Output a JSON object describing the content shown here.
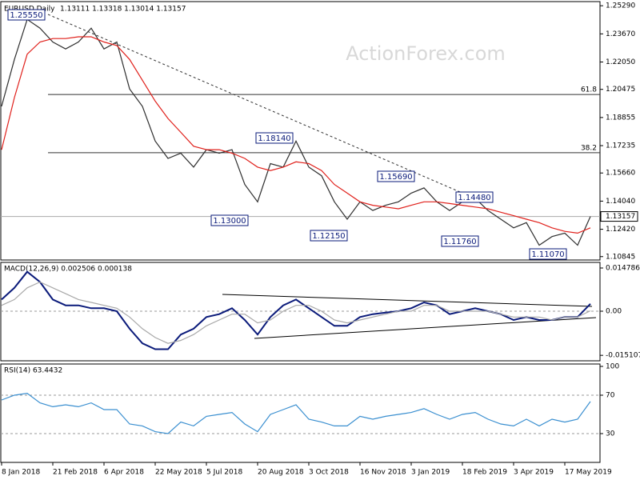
{
  "chart_data": [
    {
      "type": "line",
      "title": "EURUSD,Daily",
      "subtitle": "1.13111 1.13318 1.13014 1.13157",
      "watermark": "ActionForex.com",
      "categories": [
        "8 Jan 2018",
        null,
        null,
        null,
        "21 Feb 2018",
        null,
        null,
        null,
        "6 Apr 2018",
        null,
        null,
        null,
        "22 May 2018",
        null,
        null,
        null,
        "5 Jul 2018",
        null,
        null,
        null,
        "20 Aug 2018",
        null,
        null,
        null,
        "3 Oct 2018",
        null,
        null,
        null,
        "16 Nov 2018",
        null,
        null,
        null,
        "3 Jan 2019",
        null,
        null,
        null,
        "18 Feb 2019",
        null,
        null,
        null,
        "3 Apr 2019",
        null,
        null,
        null,
        "17 May 2019",
        null,
        null
      ],
      "series": [
        {
          "color": "#2f2f2f",
          "values": [
            1.195,
            1.222,
            1.245,
            1.24,
            1.232,
            1.228,
            1.232,
            1.24,
            1.228,
            1.232,
            1.205,
            1.195,
            1.175,
            1.165,
            1.168,
            1.16,
            1.17,
            1.168,
            1.17,
            1.15,
            1.14,
            1.162,
            1.16,
            1.175,
            1.16,
            1.155,
            1.14,
            1.13,
            1.14,
            1.135,
            1.138,
            1.14,
            1.145,
            1.148,
            1.14,
            1.135,
            1.14,
            1.142,
            1.135,
            1.13,
            1.125,
            1.128,
            1.115,
            1.12,
            1.122,
            1.115,
            1.13157
          ]
        },
        {
          "color": "#e0201b",
          "values": [
            1.17,
            1.2,
            1.225,
            1.232,
            1.234,
            1.234,
            1.235,
            1.235,
            1.232,
            1.23,
            1.222,
            1.21,
            1.198,
            1.188,
            1.18,
            1.172,
            1.17,
            1.17,
            1.168,
            1.165,
            1.16,
            1.158,
            1.16,
            1.163,
            1.162,
            1.158,
            1.15,
            1.145,
            1.14,
            1.138,
            1.137,
            1.136,
            1.138,
            1.14,
            1.14,
            1.139,
            1.138,
            1.137,
            1.136,
            1.134,
            1.132,
            1.13,
            1.128,
            1.125,
            1.123,
            1.122,
            1.125
          ]
        }
      ],
      "ylim": [
        1.1065,
        1.2539
      ],
      "yticks": [
        {
          "value": 1.2529,
          "label": "1.25290"
        },
        {
          "value": 1.2367,
          "label": "1.23670"
        },
        {
          "value": 1.2205,
          "label": "1.22050"
        },
        1.20475,
        1.18855,
        1.17235,
        {
          "value": 1.1566,
          "label": "1.15660"
        },
        {
          "value": 1.1404,
          "label": "1.14040"
        },
        {
          "value": 1.1242,
          "label": "1.12420"
        },
        1.10845
      ],
      "last_price": 1.13157,
      "levels": [
        {
          "label": "61.8",
          "value": 1.2018
        },
        {
          "label": "38.2",
          "value": 1.1683
        }
      ],
      "annotations": [
        "1.25550",
        "1.18140",
        "1.13000",
        "1.12150",
        "1.15690",
        "1.14480",
        "1.11760",
        "1.11070"
      ]
    },
    {
      "type": "line",
      "title": "MACD(12,26,9) 0.002506 0.000138",
      "series": [
        {
          "color": "#0a1a7a",
          "values": [
            0.004,
            0.008,
            0.0135,
            0.01,
            0.004,
            0.002,
            0.002,
            0.001,
            0.001,
            0,
            -0.006,
            -0.011,
            -0.013,
            -0.013,
            -0.008,
            -0.006,
            -0.002,
            -0.001,
            0.001,
            -0.003,
            -0.008,
            -0.002,
            0.002,
            0.004,
            0.001,
            -0.002,
            -0.005,
            -0.005,
            -0.002,
            -0.001,
            -0.0005,
            0,
            0.001,
            0.003,
            0.002,
            -0.001,
            0,
            0.001,
            0,
            -0.001,
            -0.003,
            -0.002,
            -0.003,
            -0.003,
            -0.002,
            -0.002,
            0.002506
          ]
        },
        {
          "color": "#a8a8a8",
          "values": [
            0.002,
            0.004,
            0.008,
            0.01,
            0.008,
            0.006,
            0.004,
            0.003,
            0.002,
            0.001,
            -0.002,
            -0.006,
            -0.009,
            -0.011,
            -0.01,
            -0.008,
            -0.005,
            -0.003,
            -0.001,
            -0.001,
            -0.004,
            -0.003,
            0,
            0.002,
            0.002,
            0,
            -0.003,
            -0.004,
            -0.003,
            -0.002,
            -0.001,
            0,
            0,
            0.002,
            0.002,
            0,
            0,
            0,
            0,
            -0.001,
            -0.002,
            -0.002,
            -0.002,
            -0.003,
            -0.002,
            -0.002,
            0.000138
          ]
        }
      ],
      "ylim": [
        -0.0167,
        0.0167
      ],
      "yticks": [
        0.014786,
        {
          "value": 0,
          "label": "0.00"
        },
        -0.015107
      ]
    },
    {
      "type": "line",
      "title": "RSI(14) 63.4432",
      "series": [
        {
          "color": "#3a8fd0",
          "values": [
            65,
            70,
            72,
            62,
            58,
            60,
            58,
            62,
            55,
            55,
            40,
            38,
            32,
            30,
            42,
            38,
            48,
            50,
            52,
            40,
            32,
            50,
            55,
            60,
            45,
            42,
            38,
            38,
            48,
            45,
            48,
            50,
            52,
            56,
            50,
            45,
            50,
            52,
            45,
            40,
            38,
            45,
            38,
            45,
            42,
            45,
            63.4432
          ]
        }
      ],
      "ylim": [
        0,
        102.5
      ],
      "yticks": [
        100,
        70,
        30
      ]
    }
  ]
}
